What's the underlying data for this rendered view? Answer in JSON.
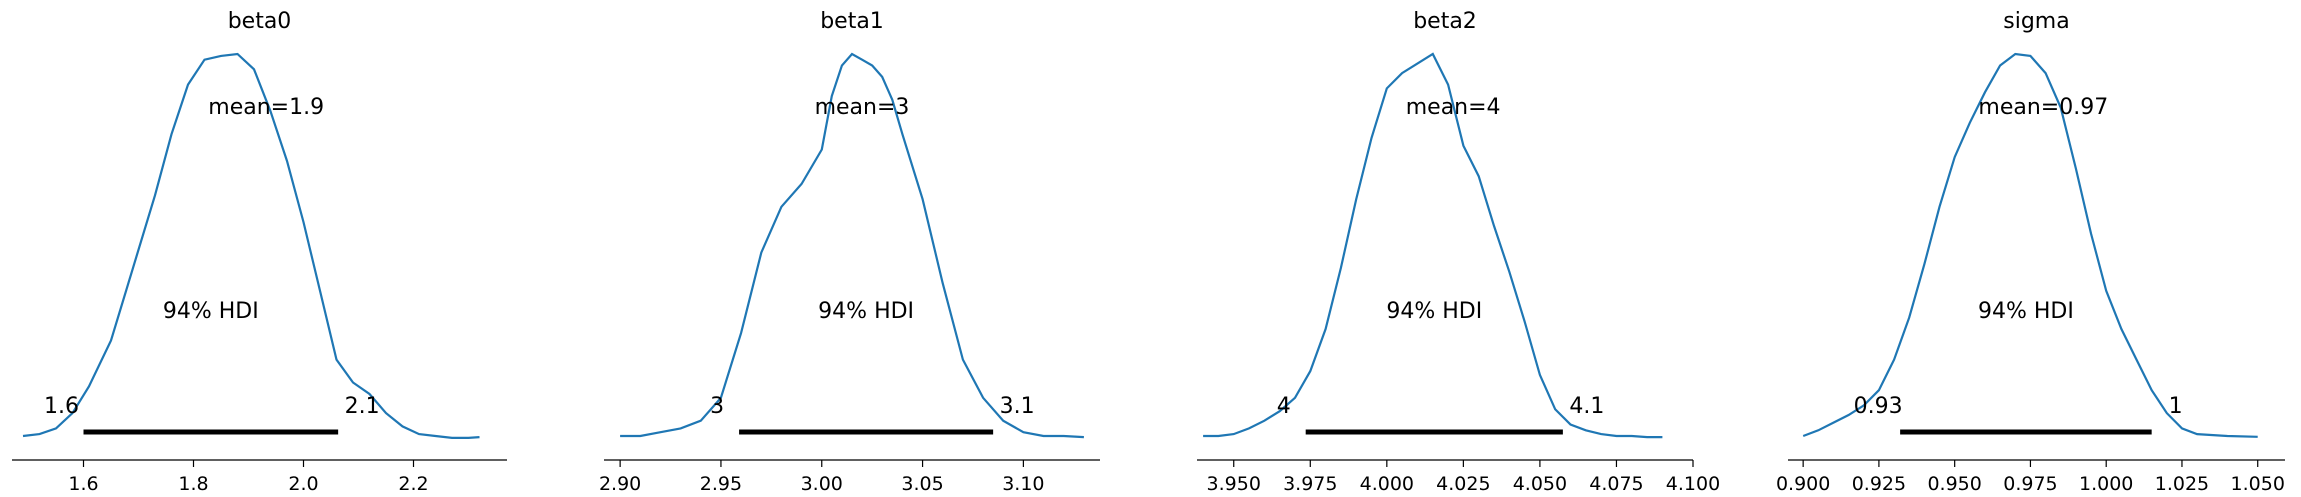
{
  "chart_data": [
    {
      "type": "line",
      "title": "beta0",
      "xlim": [
        1.47,
        2.37
      ],
      "ticks": [
        1.6,
        1.8,
        2.0,
        2.2
      ],
      "tick_labels": [
        "1.6",
        "1.8",
        "2.0",
        "2.2"
      ],
      "mean_label": "mean=1.9",
      "hdi_label": "94% HDI",
      "hdi": [
        1.6,
        2.063
      ],
      "hdi_low_label": "1.6",
      "hdi_high_label": "2.1",
      "density": {
        "x": [
          1.49,
          1.52,
          1.55,
          1.58,
          1.61,
          1.65,
          1.69,
          1.73,
          1.76,
          1.79,
          1.82,
          1.85,
          1.88,
          1.91,
          1.94,
          1.97,
          2.0,
          2.03,
          2.06,
          2.09,
          2.12,
          2.15,
          2.18,
          2.21,
          2.24,
          2.27,
          2.3,
          2.32
        ],
        "y": [
          0.0,
          0.005,
          0.02,
          0.06,
          0.13,
          0.25,
          0.44,
          0.63,
          0.79,
          0.92,
          0.985,
          0.995,
          1.0,
          0.96,
          0.85,
          0.72,
          0.56,
          0.38,
          0.2,
          0.14,
          0.11,
          0.06,
          0.025,
          0.005,
          0.0,
          -0.005,
          -0.005,
          -0.003
        ]
      }
    },
    {
      "type": "line",
      "title": "beta1",
      "xlim": [
        2.892,
        3.138
      ],
      "ticks": [
        2.9,
        2.95,
        3.0,
        3.05,
        3.1
      ],
      "tick_labels": [
        "2.90",
        "2.95",
        "3.00",
        "3.05",
        "3.10"
      ],
      "mean_label": "mean=3",
      "hdi_label": "94% HDI",
      "hdi": [
        2.959,
        3.085
      ],
      "hdi_low_label": "3",
      "hdi_high_label": "3.1",
      "density": {
        "x": [
          2.9,
          2.91,
          2.92,
          2.93,
          2.94,
          2.95,
          2.96,
          2.97,
          2.98,
          2.99,
          3.0,
          3.005,
          3.01,
          3.015,
          3.02,
          3.025,
          3.03,
          3.035,
          3.04,
          3.05,
          3.06,
          3.07,
          3.08,
          3.09,
          3.1,
          3.11,
          3.12,
          3.13
        ],
        "y": [
          0.0,
          0.0,
          0.01,
          0.02,
          0.04,
          0.1,
          0.27,
          0.48,
          0.6,
          0.66,
          0.75,
          0.89,
          0.97,
          1.0,
          0.985,
          0.97,
          0.94,
          0.88,
          0.79,
          0.62,
          0.4,
          0.2,
          0.1,
          0.04,
          0.01,
          0.0,
          0.0,
          -0.003
        ]
      }
    },
    {
      "type": "line",
      "title": "beta2",
      "xlim": [
        3.938,
        4.1
      ],
      "ticks": [
        3.95,
        3.975,
        4.0,
        4.025,
        4.05,
        4.075,
        4.1
      ],
      "tick_labels": [
        "3.950",
        "3.975",
        "4.000",
        "4.025",
        "4.050",
        "4.075",
        "4.100"
      ],
      "mean_label": "mean=4",
      "hdi_label": "94% HDI",
      "hdi": [
        3.9735,
        4.0575
      ],
      "hdi_low_label": "4",
      "hdi_high_label": "4.1",
      "density": {
        "x": [
          3.94,
          3.945,
          3.95,
          3.955,
          3.96,
          3.965,
          3.97,
          3.975,
          3.98,
          3.985,
          3.99,
          3.995,
          4.0,
          4.005,
          4.01,
          4.015,
          4.02,
          4.025,
          4.03,
          4.035,
          4.04,
          4.045,
          4.05,
          4.055,
          4.06,
          4.065,
          4.07,
          4.075,
          4.08,
          4.085,
          4.09
        ],
        "y": [
          0.0,
          0.0,
          0.005,
          0.02,
          0.04,
          0.065,
          0.1,
          0.17,
          0.28,
          0.44,
          0.62,
          0.78,
          0.91,
          0.95,
          0.975,
          1.0,
          0.92,
          0.76,
          0.68,
          0.55,
          0.43,
          0.3,
          0.16,
          0.07,
          0.03,
          0.015,
          0.005,
          0.0,
          0.0,
          -0.003,
          -0.003
        ]
      }
    },
    {
      "type": "line",
      "title": "sigma",
      "xlim": [
        0.895,
        1.059
      ],
      "ticks": [
        0.9,
        0.925,
        0.95,
        0.975,
        1.0,
        1.025,
        1.05
      ],
      "tick_labels": [
        "0.900",
        "0.925",
        "0.950",
        "0.975",
        "1.000",
        "1.025",
        "1.050"
      ],
      "mean_label": "mean=0.97",
      "hdi_label": "94% HDI",
      "hdi": [
        0.932,
        1.015
      ],
      "hdi_low_label": "0.93",
      "hdi_high_label": "1",
      "density": {
        "x": [
          0.9,
          0.905,
          0.91,
          0.915,
          0.92,
          0.925,
          0.93,
          0.935,
          0.94,
          0.945,
          0.95,
          0.955,
          0.96,
          0.965,
          0.97,
          0.975,
          0.98,
          0.985,
          0.99,
          0.995,
          1.0,
          1.005,
          1.01,
          1.015,
          1.02,
          1.025,
          1.03,
          1.04,
          1.05
        ],
        "y": [
          0.0,
          0.015,
          0.035,
          0.055,
          0.08,
          0.12,
          0.2,
          0.31,
          0.45,
          0.6,
          0.73,
          0.82,
          0.9,
          0.97,
          1.0,
          0.995,
          0.95,
          0.86,
          0.7,
          0.53,
          0.38,
          0.28,
          0.2,
          0.12,
          0.06,
          0.02,
          0.005,
          0.0,
          -0.002
        ]
      }
    }
  ]
}
